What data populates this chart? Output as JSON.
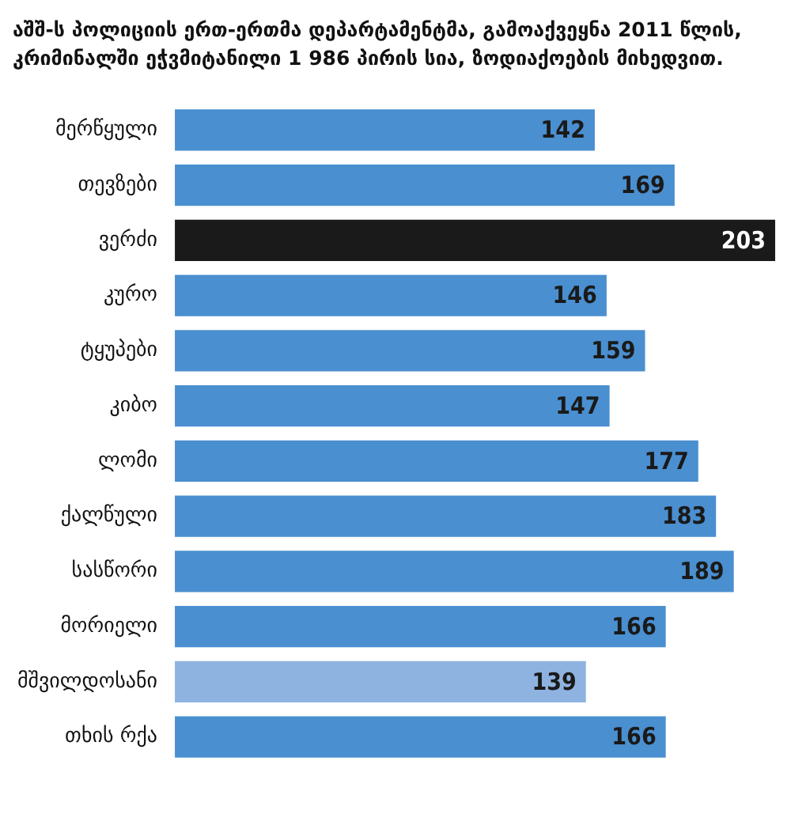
{
  "chart_data": {
    "type": "bar",
    "orientation": "horizontal",
    "title": "აშშ-ს პოლიციის ერთ-ერთმა დეპარტამენტმა, გამოაქვეყნა 2011 წლის, კრიმინალში ეჭვმიტანილი 1 986 პირის სია, ზოდიაქოების მიხედვით.",
    "categories": [
      "მერწყული",
      "თევზები",
      "ვერძი",
      "კურო",
      "ტყუპები",
      "კიბო",
      "ლომი",
      "ქალწული",
      "სასწორი",
      "მორიელი",
      "მშვილდოსანი",
      "თხის რქა"
    ],
    "values": [
      142,
      169,
      203,
      146,
      159,
      147,
      177,
      183,
      189,
      166,
      139,
      166
    ],
    "colors": [
      "#4a8fd0",
      "#4a8fd0",
      "#1a1a1a",
      "#4a8fd0",
      "#4a8fd0",
      "#4a8fd0",
      "#4a8fd0",
      "#4a8fd0",
      "#4a8fd0",
      "#4a8fd0",
      "#8fb3e0",
      "#4a8fd0"
    ],
    "data_labels": true
  }
}
